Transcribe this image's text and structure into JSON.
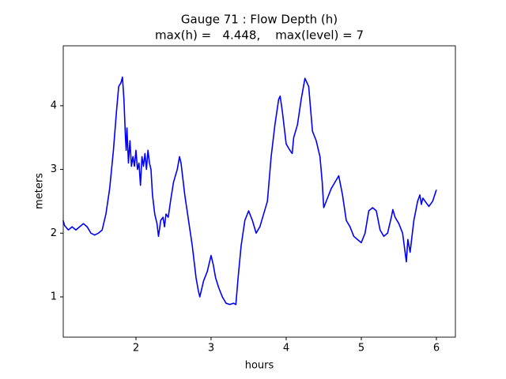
{
  "chart_data": {
    "type": "line",
    "title": "Gauge 71 : Flow Depth (h)",
    "subtitle": "max(h) =   4.448,    max(level) = 7",
    "xlabel": "hours",
    "ylabel": "meters",
    "color": "#0000ff",
    "x": [
      1.03,
      1.05,
      1.1,
      1.15,
      1.2,
      1.25,
      1.3,
      1.35,
      1.4,
      1.45,
      1.5,
      1.55,
      1.6,
      1.65,
      1.7,
      1.74,
      1.77,
      1.8,
      1.82,
      1.84,
      1.86,
      1.87,
      1.88,
      1.9,
      1.92,
      1.94,
      1.96,
      1.98,
      2.0,
      2.02,
      2.04,
      2.06,
      2.08,
      2.1,
      2.12,
      2.14,
      2.16,
      2.18,
      2.2,
      2.22,
      2.25,
      2.28,
      2.3,
      2.33,
      2.36,
      2.38,
      2.4,
      2.43,
      2.46,
      2.5,
      2.55,
      2.58,
      2.6,
      2.65,
      2.7,
      2.75,
      2.8,
      2.83,
      2.85,
      2.88,
      2.9,
      2.95,
      3.0,
      3.03,
      3.06,
      3.1,
      3.15,
      3.2,
      3.25,
      3.3,
      3.33,
      3.36,
      3.4,
      3.45,
      3.5,
      3.55,
      3.6,
      3.65,
      3.7,
      3.75,
      3.8,
      3.85,
      3.9,
      3.92,
      3.95,
      4.0,
      4.05,
      4.08,
      4.1,
      4.15,
      4.2,
      4.25,
      4.3,
      4.35,
      4.4,
      4.45,
      4.48,
      4.5,
      4.55,
      4.6,
      4.65,
      4.7,
      4.75,
      4.8,
      4.85,
      4.9,
      4.95,
      5.0,
      5.05,
      5.1,
      5.15,
      5.2,
      5.25,
      5.3,
      5.35,
      5.4,
      5.42,
      5.45,
      5.5,
      5.55,
      5.6,
      5.62,
      5.65,
      5.7,
      5.75,
      5.78,
      5.8,
      5.82,
      5.85,
      5.9,
      5.95,
      6.0
    ],
    "values": [
      2.2,
      2.12,
      2.05,
      2.1,
      2.05,
      2.1,
      2.15,
      2.1,
      2.0,
      1.97,
      2.0,
      2.05,
      2.3,
      2.7,
      3.3,
      3.9,
      4.3,
      4.36,
      4.448,
      4.1,
      3.5,
      3.3,
      3.65,
      3.1,
      3.45,
      3.05,
      3.2,
      3.05,
      3.3,
      3.0,
      3.1,
      2.75,
      3.2,
      3.05,
      3.25,
      3.0,
      3.3,
      3.1,
      3.0,
      2.6,
      2.3,
      2.15,
      1.95,
      2.2,
      2.25,
      2.1,
      2.3,
      2.25,
      2.5,
      2.8,
      3.0,
      3.2,
      3.1,
      2.6,
      2.2,
      1.8,
      1.3,
      1.1,
      1.0,
      1.15,
      1.25,
      1.4,
      1.65,
      1.5,
      1.3,
      1.15,
      1.0,
      0.9,
      0.88,
      0.9,
      0.88,
      1.3,
      1.8,
      2.2,
      2.35,
      2.2,
      2.0,
      2.1,
      2.3,
      2.5,
      3.2,
      3.7,
      4.1,
      4.15,
      3.9,
      3.4,
      3.3,
      3.25,
      3.5,
      3.7,
      4.1,
      4.43,
      4.3,
      3.6,
      3.45,
      3.2,
      2.8,
      2.4,
      2.55,
      2.7,
      2.8,
      2.9,
      2.6,
      2.2,
      2.1,
      1.95,
      1.9,
      1.85,
      2.0,
      2.35,
      2.4,
      2.35,
      2.05,
      1.95,
      2.0,
      2.25,
      2.37,
      2.25,
      2.15,
      2.0,
      1.55,
      1.9,
      1.7,
      2.2,
      2.5,
      2.6,
      2.45,
      2.55,
      2.5,
      2.42,
      2.5,
      2.68
    ],
    "xlim": [
      1.032,
      6.253
    ],
    "xticks": [
      2,
      3,
      4,
      5,
      6
    ],
    "ylim": [
      0.368,
      4.94
    ],
    "yticks": [
      1,
      2,
      3,
      4
    ]
  }
}
